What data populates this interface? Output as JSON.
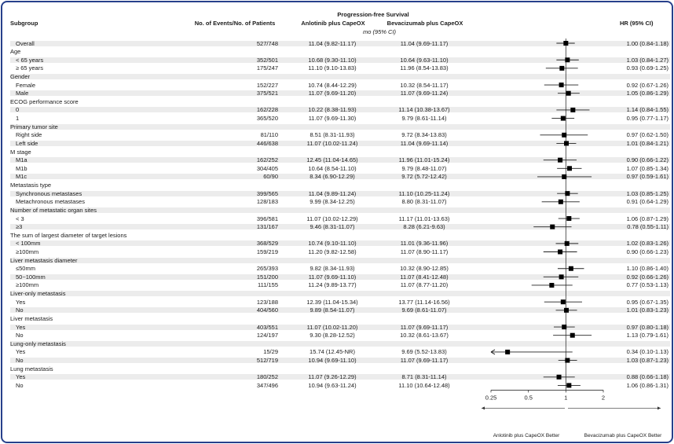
{
  "header": {
    "subgroup": "Subgroup",
    "events": "No. of Events/No. of Patients",
    "pfs": "Progression-free Survival",
    "arm1": "Anlotinib plus CapeOX",
    "arm2": "Bevacizumab plus CapeOX",
    "unit": "mo (95% CI)",
    "hr": "HR (95% CI)"
  },
  "footer": {
    "left": "Anlotinib plus CapeOX Better",
    "right": "Bevacizumab plus CapeOX Better"
  },
  "chart_data": {
    "type": "forest",
    "x_scale": "log",
    "xlim": [
      0.25,
      2
    ],
    "reference_line": 1,
    "ticks": [
      {
        "label": "0.25",
        "value": 0.25
      },
      {
        "label": "0.5",
        "value": 0.5
      },
      {
        "label": "1",
        "value": 1
      },
      {
        "label": "2",
        "value": 2
      }
    ],
    "rows": [
      {
        "label": "Overall",
        "header": false,
        "events": "527/748",
        "a": "11.04 (9.82-11.17)",
        "b": "11.04 (9.69-11.17)",
        "hr_text": "1.00 (0.84-1.18)",
        "hr": 1.0,
        "lo": 0.84,
        "hi": 1.18
      },
      {
        "label": "Age",
        "header": true
      },
      {
        "label": "< 65 years",
        "header": false,
        "events": "352/501",
        "a": "10.68 (9.30-11.10)",
        "b": "10.64 (9.63-11.10)",
        "hr_text": "1.03 (0.84-1.27)",
        "hr": 1.03,
        "lo": 0.84,
        "hi": 1.27
      },
      {
        "label": "≥ 65 years",
        "header": false,
        "events": "175/247",
        "a": "11.10 (9.10-13.83)",
        "b": "11.96 (8.54-13.83)",
        "hr_text": "0.93 (0.69-1.25)",
        "hr": 0.93,
        "lo": 0.69,
        "hi": 1.25
      },
      {
        "label": "Gender",
        "header": true
      },
      {
        "label": "Female",
        "header": false,
        "events": "152/227",
        "a": "10.74 (8.44-12.29)",
        "b": "10.32 (8.54-11.17)",
        "hr_text": "0.92 (0.67-1.26)",
        "hr": 0.92,
        "lo": 0.67,
        "hi": 1.26
      },
      {
        "label": "Male",
        "header": false,
        "events": "375/521",
        "a": "11.07 (9.69-11.20)",
        "b": "11.07 (9.69-11.24)",
        "hr_text": "1.05 (0.86-1.29)",
        "hr": 1.05,
        "lo": 0.86,
        "hi": 1.29
      },
      {
        "label": "ECOG performance score",
        "header": true
      },
      {
        "label": "0",
        "header": false,
        "events": "162/228",
        "a": "10.22 (8.38-11.93)",
        "b": "11.14 (10.38-13.67)",
        "hr_text": "1.14 (0.84-1.55)",
        "hr": 1.14,
        "lo": 0.84,
        "hi": 1.55
      },
      {
        "label": "1",
        "header": false,
        "events": "365/520",
        "a": "11.07 (9.69-11.30)",
        "b": "9.79 (8.61-11.14)",
        "hr_text": "0.95 (0.77-1.17)",
        "hr": 0.95,
        "lo": 0.77,
        "hi": 1.17
      },
      {
        "label": "Primary tumor site",
        "header": true
      },
      {
        "label": "Right side",
        "header": false,
        "events": "81/110",
        "a": "8.51 (8.31-11.93)",
        "b": "9.72 (8.34-13.83)",
        "hr_text": "0.97 (0.62-1.50)",
        "hr": 0.97,
        "lo": 0.62,
        "hi": 1.5
      },
      {
        "label": "Left side",
        "header": false,
        "events": "446/638",
        "a": "11.07 (10.02-11.24)",
        "b": "11.04 (9.69-11.14)",
        "hr_text": "1.01 (0.84-1.21)",
        "hr": 1.01,
        "lo": 0.84,
        "hi": 1.21
      },
      {
        "label": "M stage",
        "header": true
      },
      {
        "label": "M1a",
        "header": false,
        "events": "162/252",
        "a": "12.45 (11.04-14.65)",
        "b": "11.96 (11.01-15.24)",
        "hr_text": "0.90 (0.66-1.22)",
        "hr": 0.9,
        "lo": 0.66,
        "hi": 1.22
      },
      {
        "label": "M1b",
        "header": false,
        "events": "304/405",
        "a": "10.64 (8.54-11.10)",
        "b": "9.79 (8.48-11.07)",
        "hr_text": "1.07 (0.85-1.34)",
        "hr": 1.07,
        "lo": 0.85,
        "hi": 1.34
      },
      {
        "label": "M1c",
        "header": false,
        "events": "60/90",
        "a": "8.34 (6.90-12.29)",
        "b": "9.72 (5.72-12.42)",
        "hr_text": "0.97 (0.59-1.61)",
        "hr": 0.97,
        "lo": 0.59,
        "hi": 1.61
      },
      {
        "label": "Metastasis type",
        "header": true
      },
      {
        "label": "Synchronous metastases",
        "header": false,
        "events": "399/565",
        "a": "11.04 (9.89-11.24)",
        "b": "11.10 (10.25-11.24)",
        "hr_text": "1.03 (0.85-1.25)",
        "hr": 1.03,
        "lo": 0.85,
        "hi": 1.25
      },
      {
        "label": "Metachronous metastases",
        "header": false,
        "events": "128/183",
        "a": "9.99 (8.34-12.25)",
        "b": "8.80 (8.31-11.07)",
        "hr_text": "0.91 (0.64-1.29)",
        "hr": 0.91,
        "lo": 0.64,
        "hi": 1.29
      },
      {
        "label": "Number of metastatic organ sites",
        "header": true
      },
      {
        "label": "< 3",
        "header": false,
        "events": "396/581",
        "a": "11.07 (10.02-12.29)",
        "b": "11.17 (11.01-13.63)",
        "hr_text": "1.06 (0.87-1.29)",
        "hr": 1.06,
        "lo": 0.87,
        "hi": 1.29
      },
      {
        "label": "≥3",
        "header": false,
        "events": "131/167",
        "a": "9.46 (8.31-11.07)",
        "b": "8.28 (6.21-9.63)",
        "hr_text": "0.78 (0.55-1.11)",
        "hr": 0.78,
        "lo": 0.55,
        "hi": 1.11
      },
      {
        "label": "The sum of largest diameter of target lesions",
        "header": true
      },
      {
        "label": "< 100mm",
        "header": false,
        "events": "368/529",
        "a": "10.74 (9.10-11.10)",
        "b": "11.01 (9.36-11.96)",
        "hr_text": "1.02 (0.83-1.26)",
        "hr": 1.02,
        "lo": 0.83,
        "hi": 1.26
      },
      {
        "label": "≥100mm",
        "header": false,
        "events": "159/219",
        "a": "11.20 (9.82-12.58)",
        "b": "11.07 (8.90-11.17)",
        "hr_text": "0.90 (0.66-1.23)",
        "hr": 0.9,
        "lo": 0.66,
        "hi": 1.23
      },
      {
        "label": "Liver metastasis diameter",
        "header": true
      },
      {
        "label": "≤50mm",
        "header": false,
        "events": "265/393",
        "a": "9.82 (8.34-11.93)",
        "b": "10.32 (8.90-12.85)",
        "hr_text": "1.10 (0.86-1.40)",
        "hr": 1.1,
        "lo": 0.86,
        "hi": 1.4
      },
      {
        "label": "50~100mm",
        "header": false,
        "events": "151/200",
        "a": "11.07 (9.69-11.10)",
        "b": "11.07 (8.41-12.48)",
        "hr_text": "0.92 (0.66-1.26)",
        "hr": 0.92,
        "lo": 0.66,
        "hi": 1.26
      },
      {
        "label": "≥100mm",
        "header": false,
        "events": "111/155",
        "a": "11.24 (9.89-13.77)",
        "b": "11.07 (8.77-11.20)",
        "hr_text": "0.77 (0.53-1.13)",
        "hr": 0.77,
        "lo": 0.53,
        "hi": 1.13
      },
      {
        "label": "Liver-only metastasis",
        "header": true
      },
      {
        "label": "Yes",
        "header": false,
        "events": "123/188",
        "a": "12.39 (11.04-15.34)",
        "b": "13.77 (11.14-16.56)",
        "hr_text": "0.95 (0.67-1.35)",
        "hr": 0.95,
        "lo": 0.67,
        "hi": 1.35
      },
      {
        "label": "No",
        "header": false,
        "events": "404/560",
        "a": "9.89 (8.54-11.07)",
        "b": "9.69 (8.61-11.07)",
        "hr_text": "1.01 (0.83-1.23)",
        "hr": 1.01,
        "lo": 0.83,
        "hi": 1.23
      },
      {
        "label": "Liver metastasis",
        "header": true
      },
      {
        "label": "Yes",
        "header": false,
        "events": "403/551",
        "a": "11.07 (10.02-11.20)",
        "b": "11.07 (9.69-11.17)",
        "hr_text": "0.97 (0.80-1.18)",
        "hr": 0.97,
        "lo": 0.8,
        "hi": 1.18
      },
      {
        "label": "No",
        "header": false,
        "events": "124/197",
        "a": "9.30 (8.28-12.52)",
        "b": "10.32 (8.61-13.67)",
        "hr_text": "1.13 (0.79-1.61)",
        "hr": 1.13,
        "lo": 0.79,
        "hi": 1.61
      },
      {
        "label": "Lung-only metastasis",
        "header": true
      },
      {
        "label": "Yes",
        "header": false,
        "events": "15/29",
        "a": "15.74 (12.45-NR)",
        "b": "9.69 (5.52-13.83)",
        "hr_text": "0.34 (0.10-1.13)",
        "hr": 0.34,
        "lo": 0.1,
        "hi": 1.13
      },
      {
        "label": "No",
        "header": false,
        "events": "512/719",
        "a": "10.94 (9.69-11.10)",
        "b": "11.07 (9.69-11.17)",
        "hr_text": "1.03 (0.87-1.23)",
        "hr": 1.03,
        "lo": 0.87,
        "hi": 1.23
      },
      {
        "label": "Lung metastasis",
        "header": true
      },
      {
        "label": "Yes",
        "header": false,
        "events": "180/252",
        "a": "11.07 (9.26-12.29)",
        "b": "8.71 (8.31-11.14)",
        "hr_text": "0.88 (0.66-1.18)",
        "hr": 0.88,
        "lo": 0.66,
        "hi": 1.18
      },
      {
        "label": "No",
        "header": false,
        "events": "347/496",
        "a": "10.94 (9.63-11.24)",
        "b": "11.10 (10.64-12.48)",
        "hr_text": "1.06 (0.86-1.31)",
        "hr": 1.06,
        "lo": 0.86,
        "hi": 1.31
      }
    ]
  }
}
